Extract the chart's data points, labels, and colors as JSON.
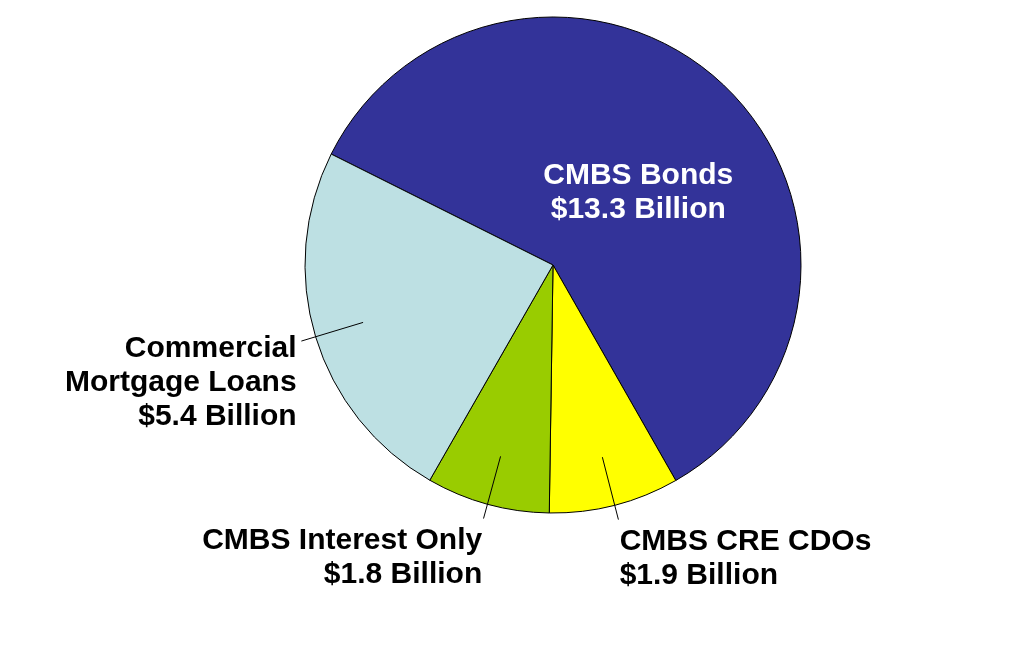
{
  "chart_data": {
    "type": "pie",
    "categories": [
      "CMBS Bonds",
      "CMBS CRE CDOs",
      "CMBS Interest Only",
      "Commercial Mortgage Loans"
    ],
    "values": [
      13.3,
      1.9,
      1.8,
      5.4
    ],
    "colors": [
      "#333399",
      "#ffff00",
      "#99cc00",
      "#bde0e3"
    ],
    "value_labels": [
      "$13.3 Billion",
      "$1.9 Billion",
      "$1.8 Billion",
      "$5.4 Billion"
    ]
  }
}
